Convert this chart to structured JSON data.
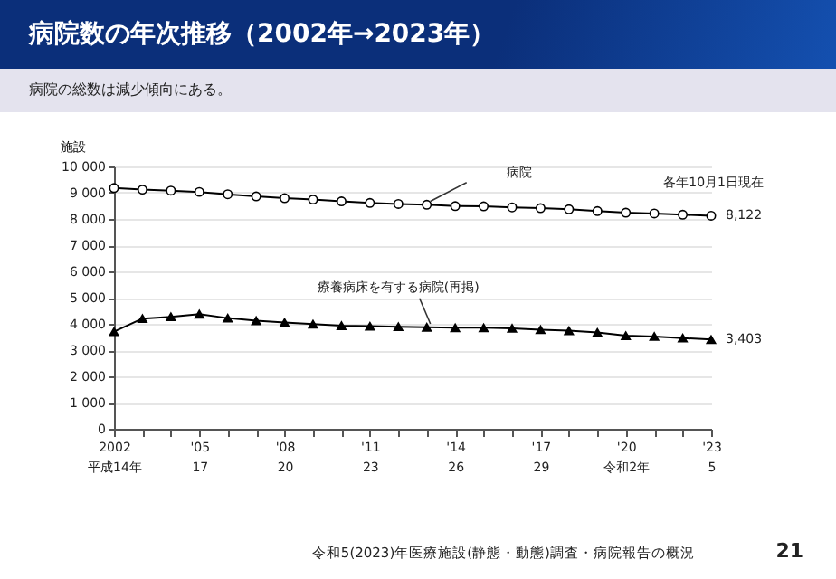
{
  "chart_data": {
    "type": "line",
    "title": "病院数の年次推移（2002年→2023年）",
    "subtitle": "病院の総数は減少傾向にある。",
    "ylabel": "施設",
    "annotations": [
      "各年10月1日現在",
      "令和5(2023)年医療施設(静態・動態)調査・病院報告の概況",
      "21"
    ],
    "categories": [
      "2002\n平成14年",
      null,
      null,
      "'05\n17",
      null,
      null,
      "'08\n20",
      null,
      null,
      "'11\n23",
      null,
      null,
      "'14\n26",
      null,
      null,
      "'17\n29",
      null,
      null,
      "'20\n令和2年",
      null,
      null,
      "'23\n5"
    ],
    "series": [
      {
        "name": "病院",
        "color": "#000000",
        "marker": "circle",
        "values": [
          9180,
          9120,
          9080,
          9030,
          8940,
          8860,
          8790,
          8740,
          8670,
          8610,
          8570,
          8540,
          8490,
          8480,
          8440,
          8410,
          8370,
          8300,
          8240,
          8210,
          8160,
          8122
        ],
        "value_labels": [
          null,
          null,
          null,
          null,
          null,
          null,
          null,
          null,
          null,
          null,
          null,
          null,
          null,
          null,
          null,
          null,
          null,
          null,
          null,
          null,
          null,
          "8,122"
        ]
      },
      {
        "name": "療養病床を有する病院(再掲)",
        "color": "#000000",
        "marker": "triangle",
        "values": [
          3700,
          4200,
          4270,
          4370,
          4220,
          4120,
          4050,
          3990,
          3930,
          3910,
          3890,
          3870,
          3850,
          3850,
          3830,
          3780,
          3740,
          3670,
          3550,
          3520,
          3460,
          3403
        ],
        "value_labels": [
          null,
          null,
          null,
          null,
          null,
          null,
          null,
          null,
          null,
          null,
          null,
          null,
          null,
          null,
          null,
          null,
          null,
          null,
          null,
          null,
          null,
          "3,403"
        ]
      }
    ],
    "ylim": [
      0,
      10000
    ],
    "yticks": [
      {
        "value": 0,
        "label": "0"
      },
      {
        "value": 1000,
        "label": "1 000"
      },
      {
        "value": 2000,
        "label": "2 000"
      },
      {
        "value": 3000,
        "label": "3 000"
      },
      {
        "value": 4000,
        "label": "4 000"
      },
      {
        "value": 5000,
        "label": "5 000"
      },
      {
        "value": 6000,
        "label": "6 000"
      },
      {
        "value": 7000,
        "label": "7 000"
      },
      {
        "value": 8000,
        "label": "8 000"
      },
      {
        "value": 9000,
        "label": "9 000"
      },
      {
        "value": 10000,
        "label": "10 000"
      }
    ],
    "grid": "y"
  }
}
